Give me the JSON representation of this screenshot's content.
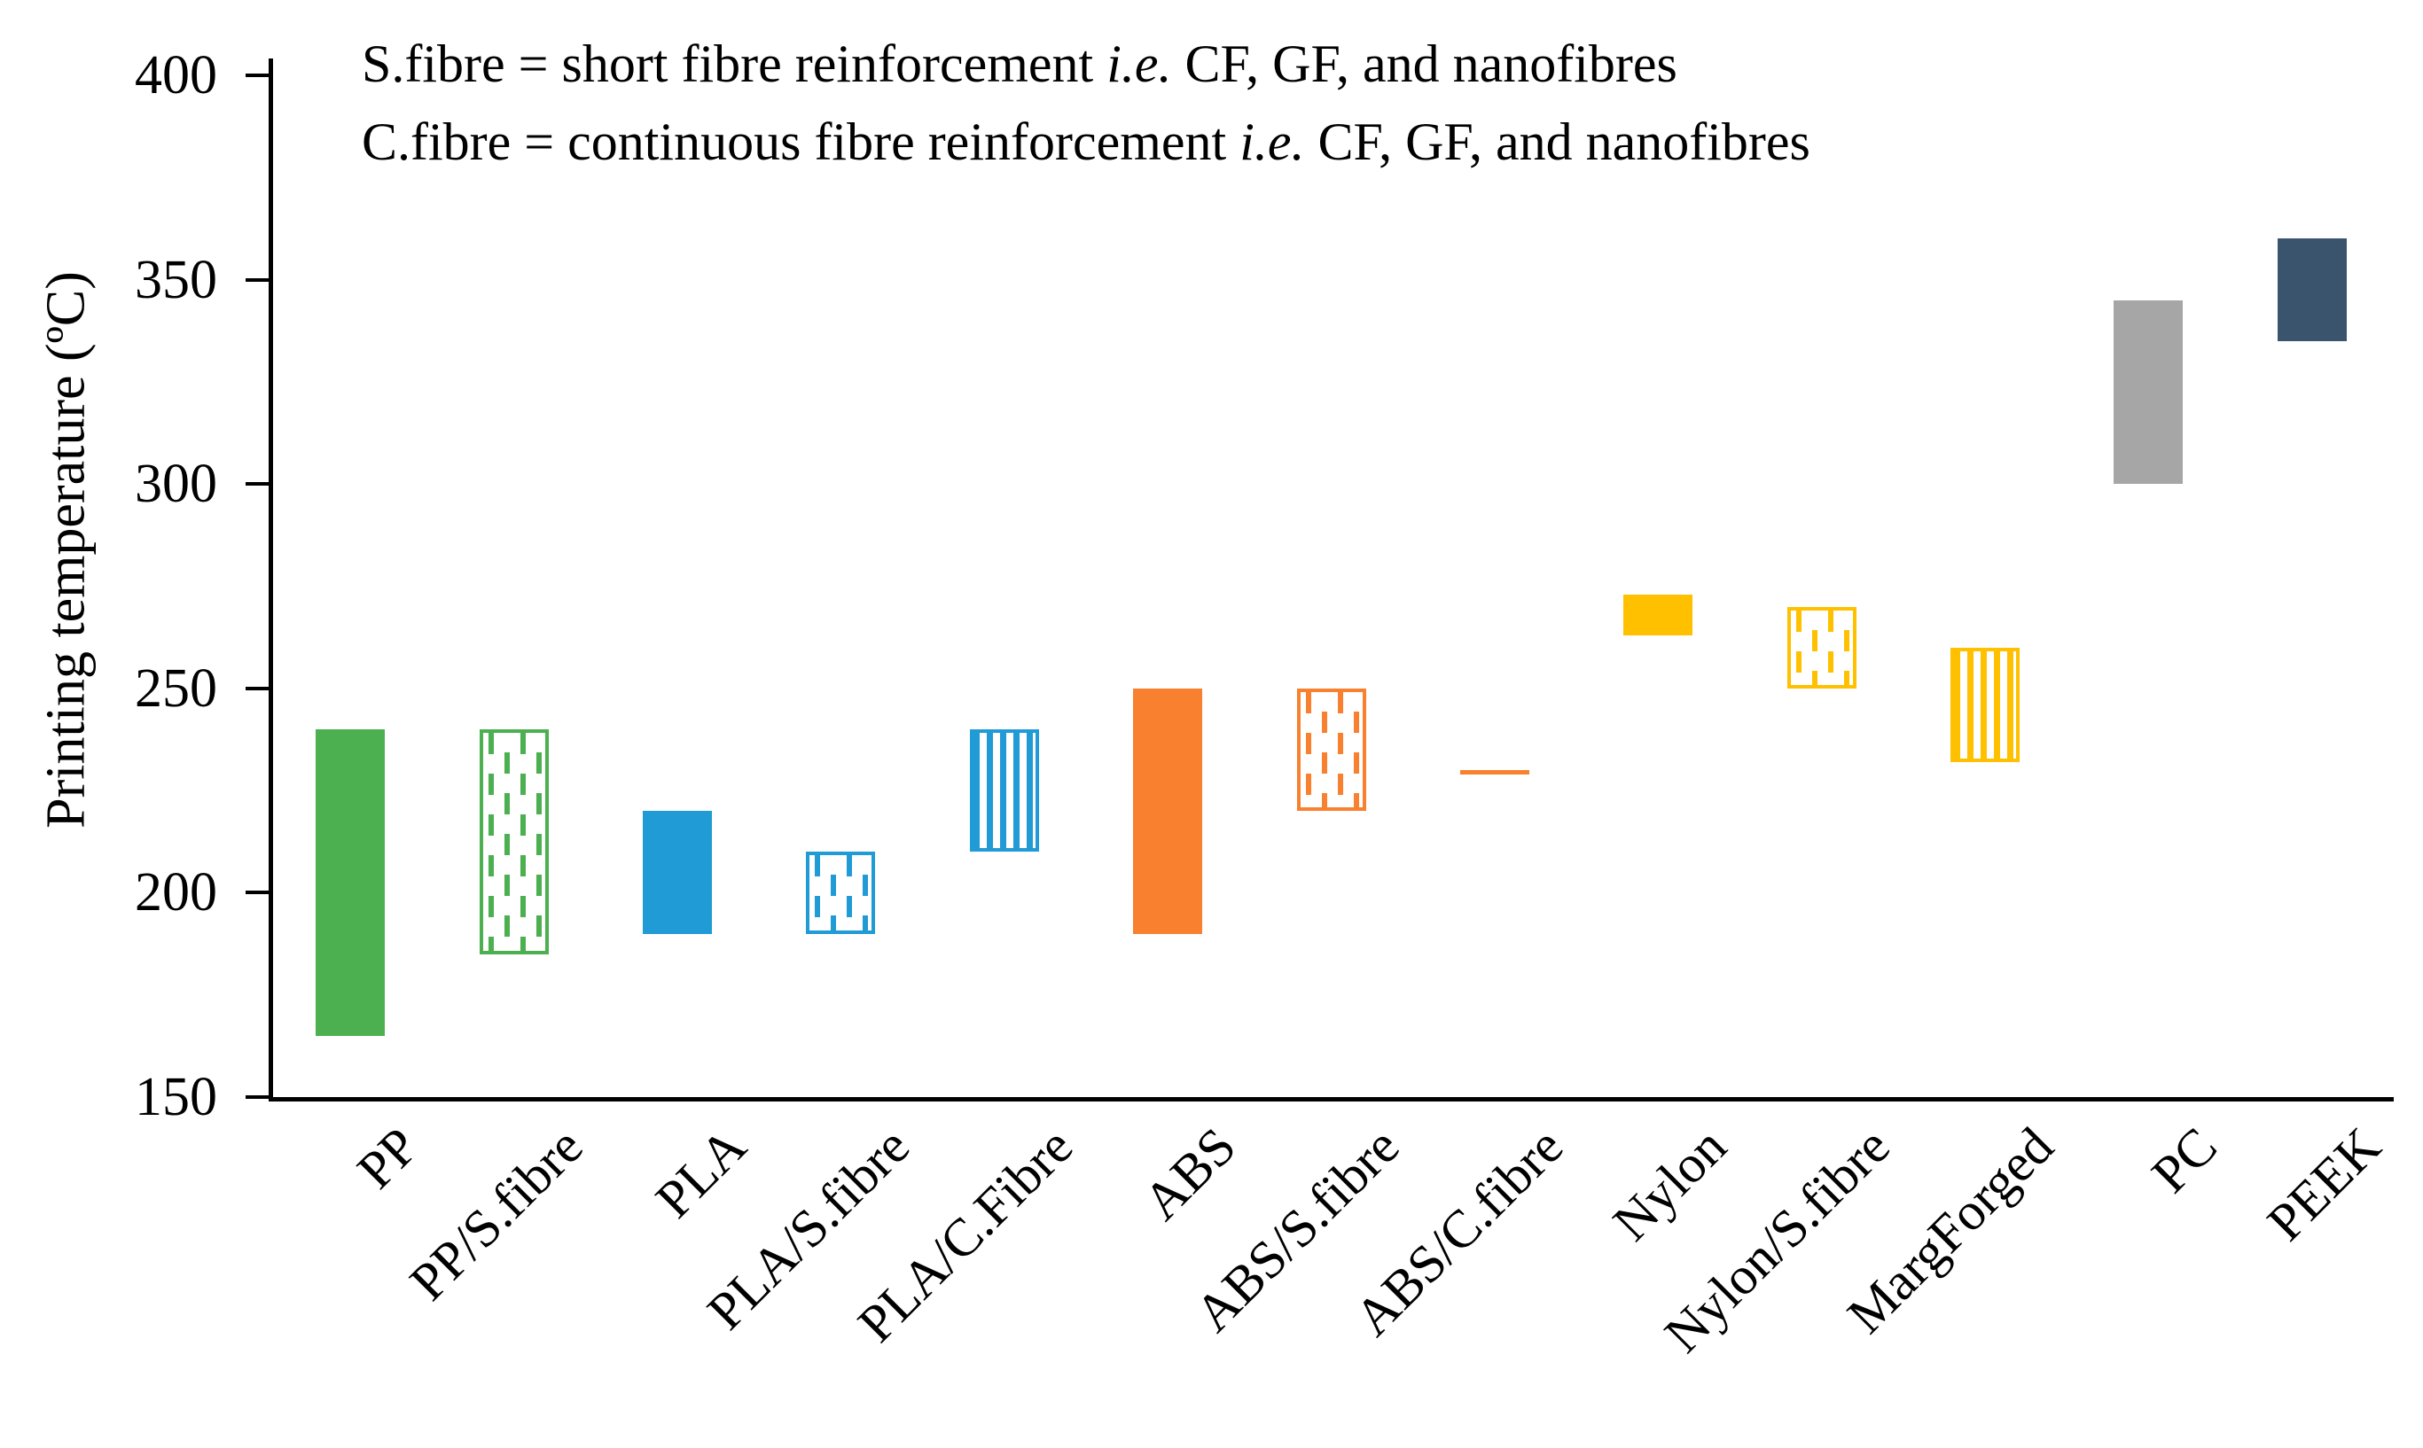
{
  "chart_data": {
    "type": "bar",
    "subtype": "floating-range-columns",
    "title": "",
    "xlabel": "",
    "ylabel": "Printing temperature (ºC)",
    "ylim": [
      150,
      400
    ],
    "yticks": [
      150,
      200,
      250,
      300,
      350,
      400
    ],
    "grid": false,
    "legend": "none",
    "annotation": {
      "line1_prefix": "S.fibre = short fibre reinforcement ",
      "line1_italic": "i.e.",
      "line1_suffix": " CF, GF, and nanofibres",
      "line2_prefix": "C.fibre = continuous fibre reinforcement ",
      "line2_italic": "i.e.",
      "line2_suffix": " CF, GF, and nanofibres"
    },
    "categories": [
      "PP",
      "PP/S.fibre",
      "PLA",
      "PLA/S.fibre",
      "PLA/C.Fibre",
      "ABS",
      "ABS/S.fibre",
      "ABS/C.fibre",
      "Nylon",
      "Nylon/S.fibre",
      "MargForged",
      "PC",
      "PEEK"
    ],
    "bars": [
      {
        "label": "PP",
        "min": 165,
        "max": 240,
        "color": "green",
        "pattern": "solid"
      },
      {
        "label": "PP/S.fibre",
        "min": 185,
        "max": 240,
        "color": "green",
        "pattern": "dash"
      },
      {
        "label": "PLA",
        "min": 190,
        "max": 220,
        "color": "blue",
        "pattern": "solid"
      },
      {
        "label": "PLA/S.fibre",
        "min": 190,
        "max": 210,
        "color": "blue",
        "pattern": "dash"
      },
      {
        "label": "PLA/C.Fibre",
        "min": 210,
        "max": 240,
        "color": "blue",
        "pattern": "stripe"
      },
      {
        "label": "ABS",
        "min": 190,
        "max": 250,
        "color": "orange",
        "pattern": "solid"
      },
      {
        "label": "ABS/S.fibre",
        "min": 220,
        "max": 250,
        "color": "orange",
        "pattern": "dash"
      },
      {
        "label": "ABS/C.fibre",
        "min": 230,
        "max": 230,
        "color": "orange",
        "pattern": "line"
      },
      {
        "label": "Nylon",
        "min": 263,
        "max": 273,
        "color": "yellow",
        "pattern": "solid"
      },
      {
        "label": "Nylon/S.fibre",
        "min": 250,
        "max": 270,
        "color": "yellow",
        "pattern": "dash"
      },
      {
        "label": "MargForged",
        "min": 232,
        "max": 260,
        "color": "yellow",
        "pattern": "stripe"
      },
      {
        "label": "PC",
        "min": 300,
        "max": 345,
        "color": "gray",
        "pattern": "solid"
      },
      {
        "label": "PEEK",
        "min": 335,
        "max": 360,
        "color": "navy",
        "pattern": "solid"
      }
    ],
    "palette": {
      "green": "#4CAF50",
      "blue": "#209BD6",
      "orange": "#F8802E",
      "yellow": "#FFC000",
      "gray": "#A6A6A6",
      "navy": "#3A546E",
      "axis": "#000000"
    }
  }
}
